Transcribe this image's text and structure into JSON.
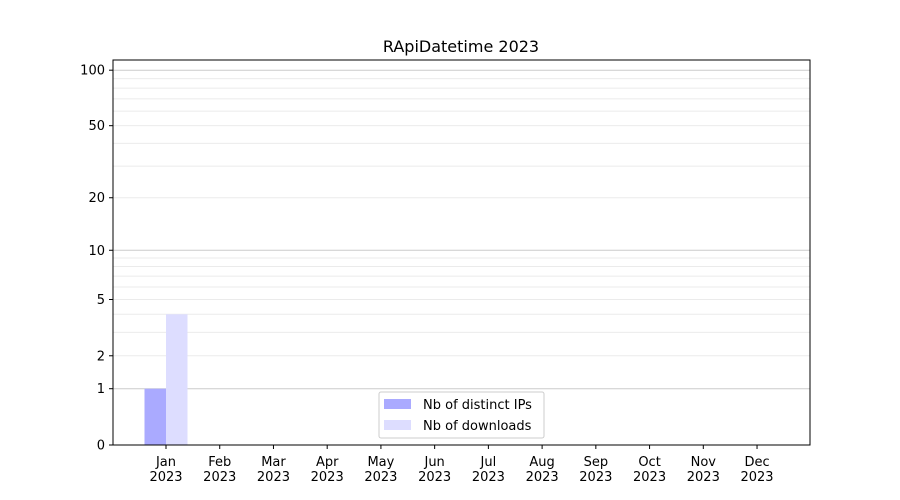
{
  "chart_data": {
    "type": "bar",
    "title": "RApiDatetime 2023",
    "xlabel": "",
    "ylabel": "",
    "y_scale": "log10(1+y)",
    "ylim": [
      0,
      114
    ],
    "y_ticks": [
      0,
      1,
      2,
      5,
      10,
      20,
      50,
      100
    ],
    "grid": "horizontal, major and minor",
    "legend_position": "bottom-center",
    "categories": [
      "Jan\n2023",
      "Feb\n2023",
      "Mar\n2023",
      "Apr\n2023",
      "May\n2023",
      "Jun\n2023",
      "Jul\n2023",
      "Aug\n2023",
      "Sep\n2023",
      "Oct\n2023",
      "Nov\n2023",
      "Dec\n2023"
    ],
    "series": [
      {
        "name": "Nb of distinct IPs",
        "color": "#aaaaff",
        "values": [
          1,
          0,
          0,
          0,
          0,
          0,
          0,
          0,
          0,
          0,
          0,
          0
        ]
      },
      {
        "name": "Nb of downloads",
        "color": "#ddddff",
        "values": [
          4,
          0,
          0,
          0,
          0,
          0,
          0,
          0,
          0,
          0,
          0,
          0
        ]
      }
    ]
  }
}
